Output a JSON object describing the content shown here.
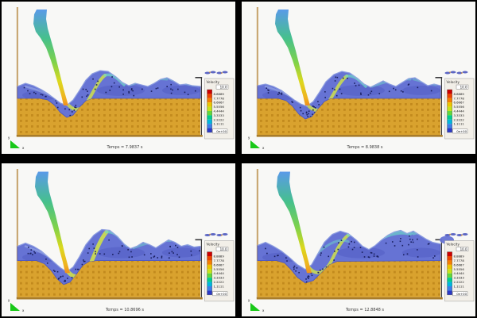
{
  "panels": [
    {
      "caption": "Temps = 7.9837 s",
      "legend": {
        "title": "Velocity",
        "max": "10.0",
        "ticks": [
          "8.8889",
          "7.7778",
          "6.6667",
          "5.5556",
          "4.4444",
          "3.3333",
          "2.2222",
          "1.1111"
        ],
        "min": "0e+00"
      }
    },
    {
      "caption": "Temps = 8.9838 s",
      "legend": {
        "title": "Velocity",
        "max": "10.0",
        "ticks": [
          "8.8889",
          "7.7778",
          "6.6667",
          "5.5556",
          "4.4444",
          "3.3333",
          "2.2222",
          "1.1111"
        ],
        "min": "0e+00"
      }
    },
    {
      "caption": "Temps = 10.8696 s",
      "legend": {
        "title": "Velocity",
        "max": "10.0",
        "ticks": [
          "8.8889",
          "7.7778",
          "6.6667",
          "5.5556",
          "4.4444",
          "3.3333",
          "2.2222",
          "1.1111"
        ],
        "min": "0e+00"
      }
    },
    {
      "caption": "Temps = 12.8848 s",
      "legend": {
        "title": "Velocity",
        "max": "10.0",
        "ticks": [
          "8.8889",
          "7.7778",
          "6.6667",
          "5.5556",
          "4.4444",
          "3.3333",
          "2.2222",
          "1.1111"
        ],
        "min": "0e+00"
      }
    }
  ],
  "axes": {
    "vertical": "y",
    "horizontal": "x"
  },
  "legend_colors": [
    "#cc0000",
    "#ee4400",
    "#f57f00",
    "#edc500",
    "#c6e31a",
    "#62d83c",
    "#00cf8e",
    "#00b7dd",
    "#3a7fe8",
    "#2b39c8"
  ],
  "colors": {
    "background": "#000000",
    "panel": "#f8f8f6",
    "sand": "#d9a22e",
    "sand_dot": "#c28a1d",
    "sand_wall": "#a87c2a",
    "tank_wall": "#c9a874",
    "weir_wall": "#3a3a3c",
    "water": "#6673d4",
    "water_deep": "#4a55be",
    "water_light": "#9fb2ea",
    "streak_fast": "#cfe04a",
    "streak_cyan": "#6fd8c8",
    "jet_top": "#5a9ae8",
    "jet_mid": "#46c08c",
    "jet_low": "#dcd81e",
    "jet_tip": "#ef8f1f",
    "particle": "#1a2060",
    "droplet_spray": "#e09020",
    "triad": "#18c818",
    "legend_bg": "#f2efe8"
  }
}
